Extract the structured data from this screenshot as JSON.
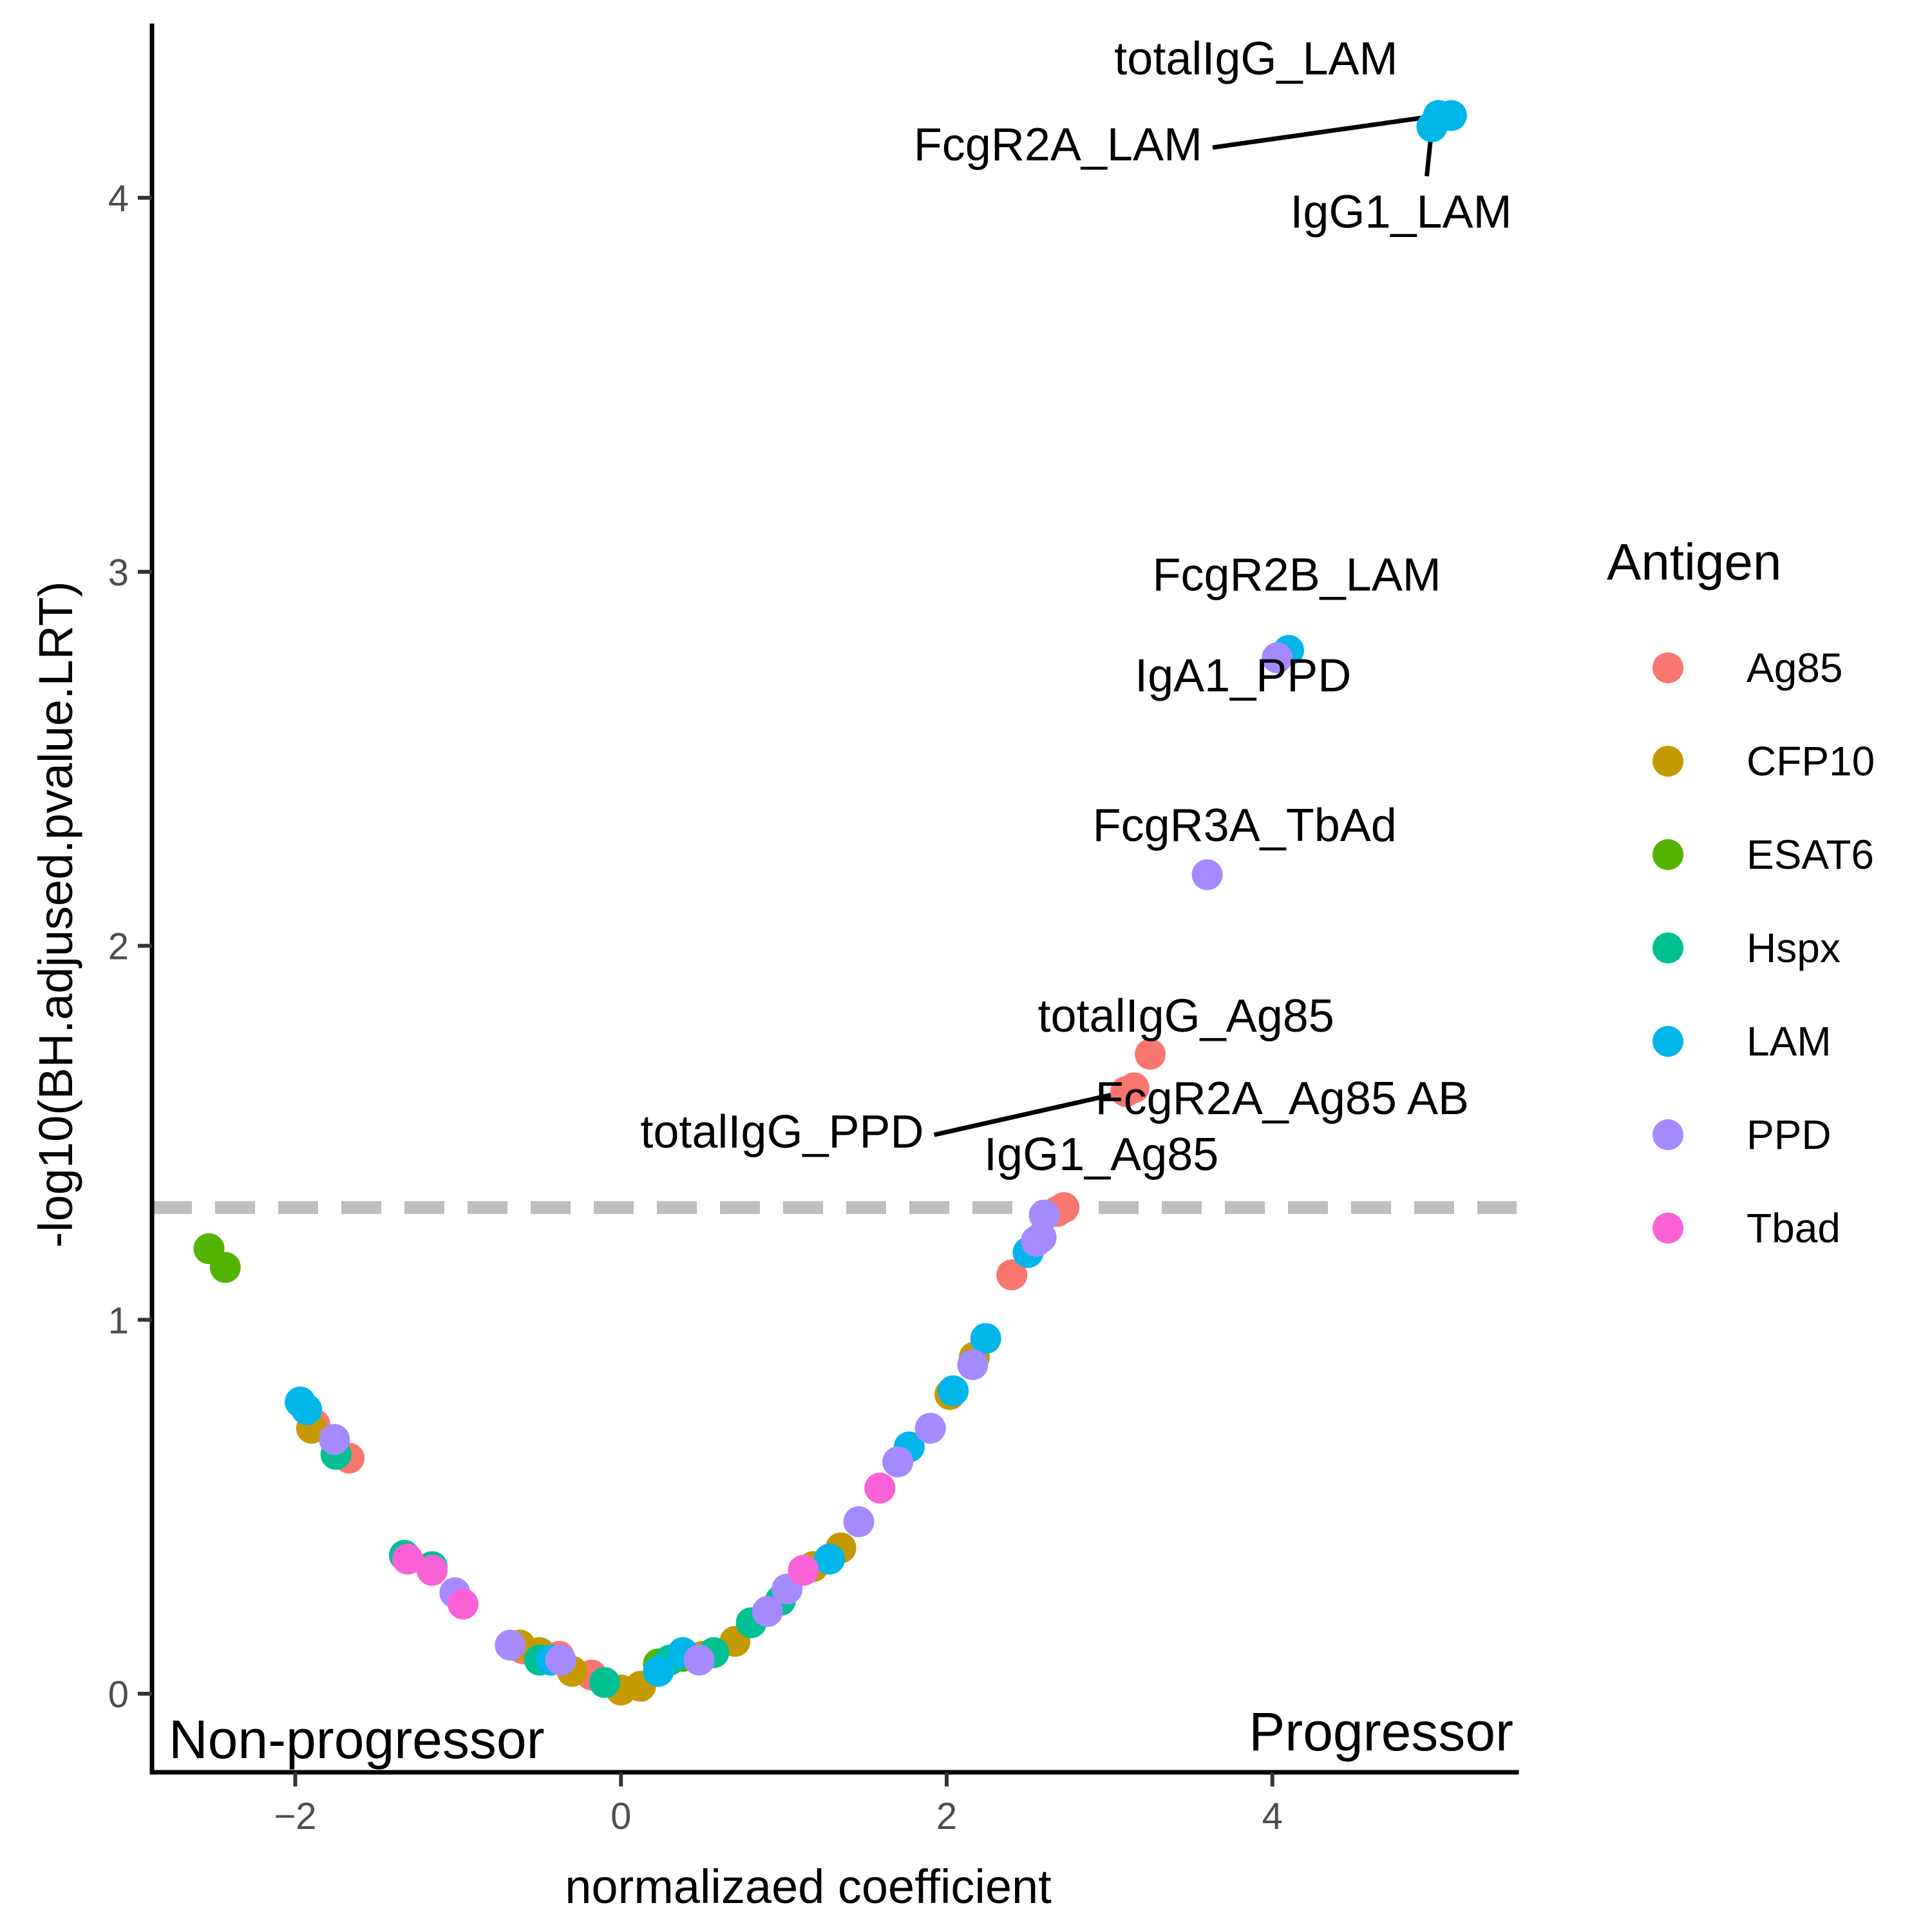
{
  "chart_data": {
    "type": "scatter",
    "xlabel": "normalizaed coefficient",
    "ylabel": "-log10(BH.adjused.pvalue.LRT)",
    "xlim": [
      -2.88,
      5.5
    ],
    "ylim": [
      -0.21,
      4.46
    ],
    "x_ticks": [
      -2,
      0,
      2,
      4
    ],
    "y_ticks": [
      0,
      1,
      2,
      3,
      4
    ],
    "x_tick_labels": [
      "−2",
      "0",
      "2",
      "4"
    ],
    "y_tick_labels": [
      "0",
      "1",
      "2",
      "3",
      "4"
    ],
    "threshold_y": 1.3,
    "grid": false,
    "legend_position": "right",
    "corner_labels": {
      "left": "Non-progressor",
      "right": "Progressor"
    },
    "legend": {
      "title": "Antigen",
      "entries": [
        "Ag85",
        "CFP10",
        "ESAT6",
        "Hspx",
        "LAM",
        "PPD",
        "Tbad"
      ]
    },
    "colors": {
      "Ag85": "#F8766D",
      "CFP10": "#C49A00",
      "ESAT6": "#53B400",
      "Hspx": "#00C094",
      "LAM": "#00B6EB",
      "PPD": "#A58AFF",
      "Tbad": "#FB61D7",
      "threshold": "#bebebe"
    },
    "series": [
      {
        "name": "Ag85",
        "points": [
          [
            3.25,
            1.71
          ],
          [
            3.1,
            1.61
          ],
          [
            3.15,
            1.62
          ],
          [
            2.72,
            1.3
          ],
          [
            2.68,
            1.29
          ],
          [
            2.4,
            1.12
          ],
          [
            -1.88,
            0.72
          ],
          [
            -1.67,
            0.63
          ],
          [
            -0.6,
            0.12
          ],
          [
            -0.38,
            0.1
          ],
          [
            -0.18,
            0.05
          ]
        ]
      },
      {
        "name": "CFP10",
        "points": [
          [
            -1.9,
            0.71
          ],
          [
            -0.62,
            0.13
          ],
          [
            -0.5,
            0.11
          ],
          [
            -0.3,
            0.06
          ],
          [
            0.0,
            0.01
          ],
          [
            0.12,
            0.02
          ],
          [
            0.5,
            0.1
          ],
          [
            0.7,
            0.14
          ],
          [
            1.18,
            0.34
          ],
          [
            1.35,
            0.39
          ],
          [
            2.02,
            0.8
          ],
          [
            2.17,
            0.9
          ]
        ]
      },
      {
        "name": "ESAT6",
        "points": [
          [
            -2.53,
            1.19
          ],
          [
            -2.43,
            1.14
          ],
          [
            0.23,
            0.08
          ],
          [
            0.38,
            0.1
          ]
        ]
      },
      {
        "name": "Hspx",
        "points": [
          [
            -1.75,
            0.64
          ],
          [
            -1.33,
            0.37
          ],
          [
            -1.16,
            0.34
          ],
          [
            -0.5,
            0.09
          ],
          [
            -0.1,
            0.03
          ],
          [
            0.3,
            0.09
          ],
          [
            0.57,
            0.11
          ],
          [
            0.8,
            0.19
          ],
          [
            0.98,
            0.25
          ]
        ]
      },
      {
        "name": "LAM",
        "points": [
          [
            5.02,
            4.22
          ],
          [
            5.1,
            4.22
          ],
          [
            4.98,
            4.19
          ],
          [
            4.1,
            2.79
          ],
          [
            -1.97,
            0.78
          ],
          [
            -1.93,
            0.76
          ],
          [
            -0.43,
            0.09
          ],
          [
            0.23,
            0.06
          ],
          [
            0.38,
            0.11
          ],
          [
            1.28,
            0.36
          ],
          [
            1.77,
            0.66
          ],
          [
            2.04,
            0.81
          ],
          [
            2.24,
            0.95
          ],
          [
            2.5,
            1.18
          ]
        ]
      },
      {
        "name": "PPD",
        "points": [
          [
            4.03,
            2.77
          ],
          [
            3.6,
            2.19
          ],
          [
            2.6,
            1.28
          ],
          [
            2.58,
            1.22
          ],
          [
            2.55,
            1.21
          ],
          [
            2.16,
            0.88
          ],
          [
            1.9,
            0.71
          ],
          [
            1.7,
            0.62
          ],
          [
            1.46,
            0.46
          ],
          [
            1.02,
            0.28
          ],
          [
            0.9,
            0.22
          ],
          [
            0.48,
            0.09
          ],
          [
            -0.68,
            0.13
          ],
          [
            -0.37,
            0.09
          ],
          [
            -1.76,
            0.68
          ],
          [
            -1.02,
            0.27
          ]
        ]
      },
      {
        "name": "Tbad",
        "points": [
          [
            1.59,
            0.55
          ],
          [
            1.12,
            0.33
          ],
          [
            -1.16,
            0.33
          ],
          [
            -0.97,
            0.24
          ],
          [
            -1.31,
            0.36
          ]
        ]
      }
    ],
    "annotations": [
      {
        "text": "totalIgG_LAM",
        "x": 3.9,
        "y": 4.33,
        "anchor": "middle"
      },
      {
        "text": "FcgR2A_LAM",
        "x": 3.57,
        "y": 4.1,
        "anchor": "end",
        "line_to": [
          5.02,
          4.22
        ]
      },
      {
        "text": "IgG1_LAM",
        "x": 4.79,
        "y": 3.92,
        "anchor": "middle",
        "line_to": [
          4.98,
          4.19
        ]
      },
      {
        "text": "FcgR2B_LAM",
        "x": 4.15,
        "y": 2.95,
        "anchor": "middle"
      },
      {
        "text": "IgA1_PPD",
        "x": 3.82,
        "y": 2.68,
        "anchor": "middle"
      },
      {
        "text": "FcgR3A_TbAd",
        "x": 3.83,
        "y": 2.28,
        "anchor": "middle"
      },
      {
        "text": "totalIgG_Ag85",
        "x": 3.47,
        "y": 1.77,
        "anchor": "middle"
      },
      {
        "text": "FcgR2A_Ag85 AB",
        "x": 4.06,
        "y": 1.55,
        "anchor": "middle"
      },
      {
        "text": "totalIgG_PPD",
        "x": 1.86,
        "y": 1.46,
        "anchor": "end",
        "line_to": [
          3.1,
          1.61
        ]
      },
      {
        "text": "IgG1_Ag85",
        "x": 2.95,
        "y": 1.4,
        "anchor": "middle"
      }
    ]
  }
}
